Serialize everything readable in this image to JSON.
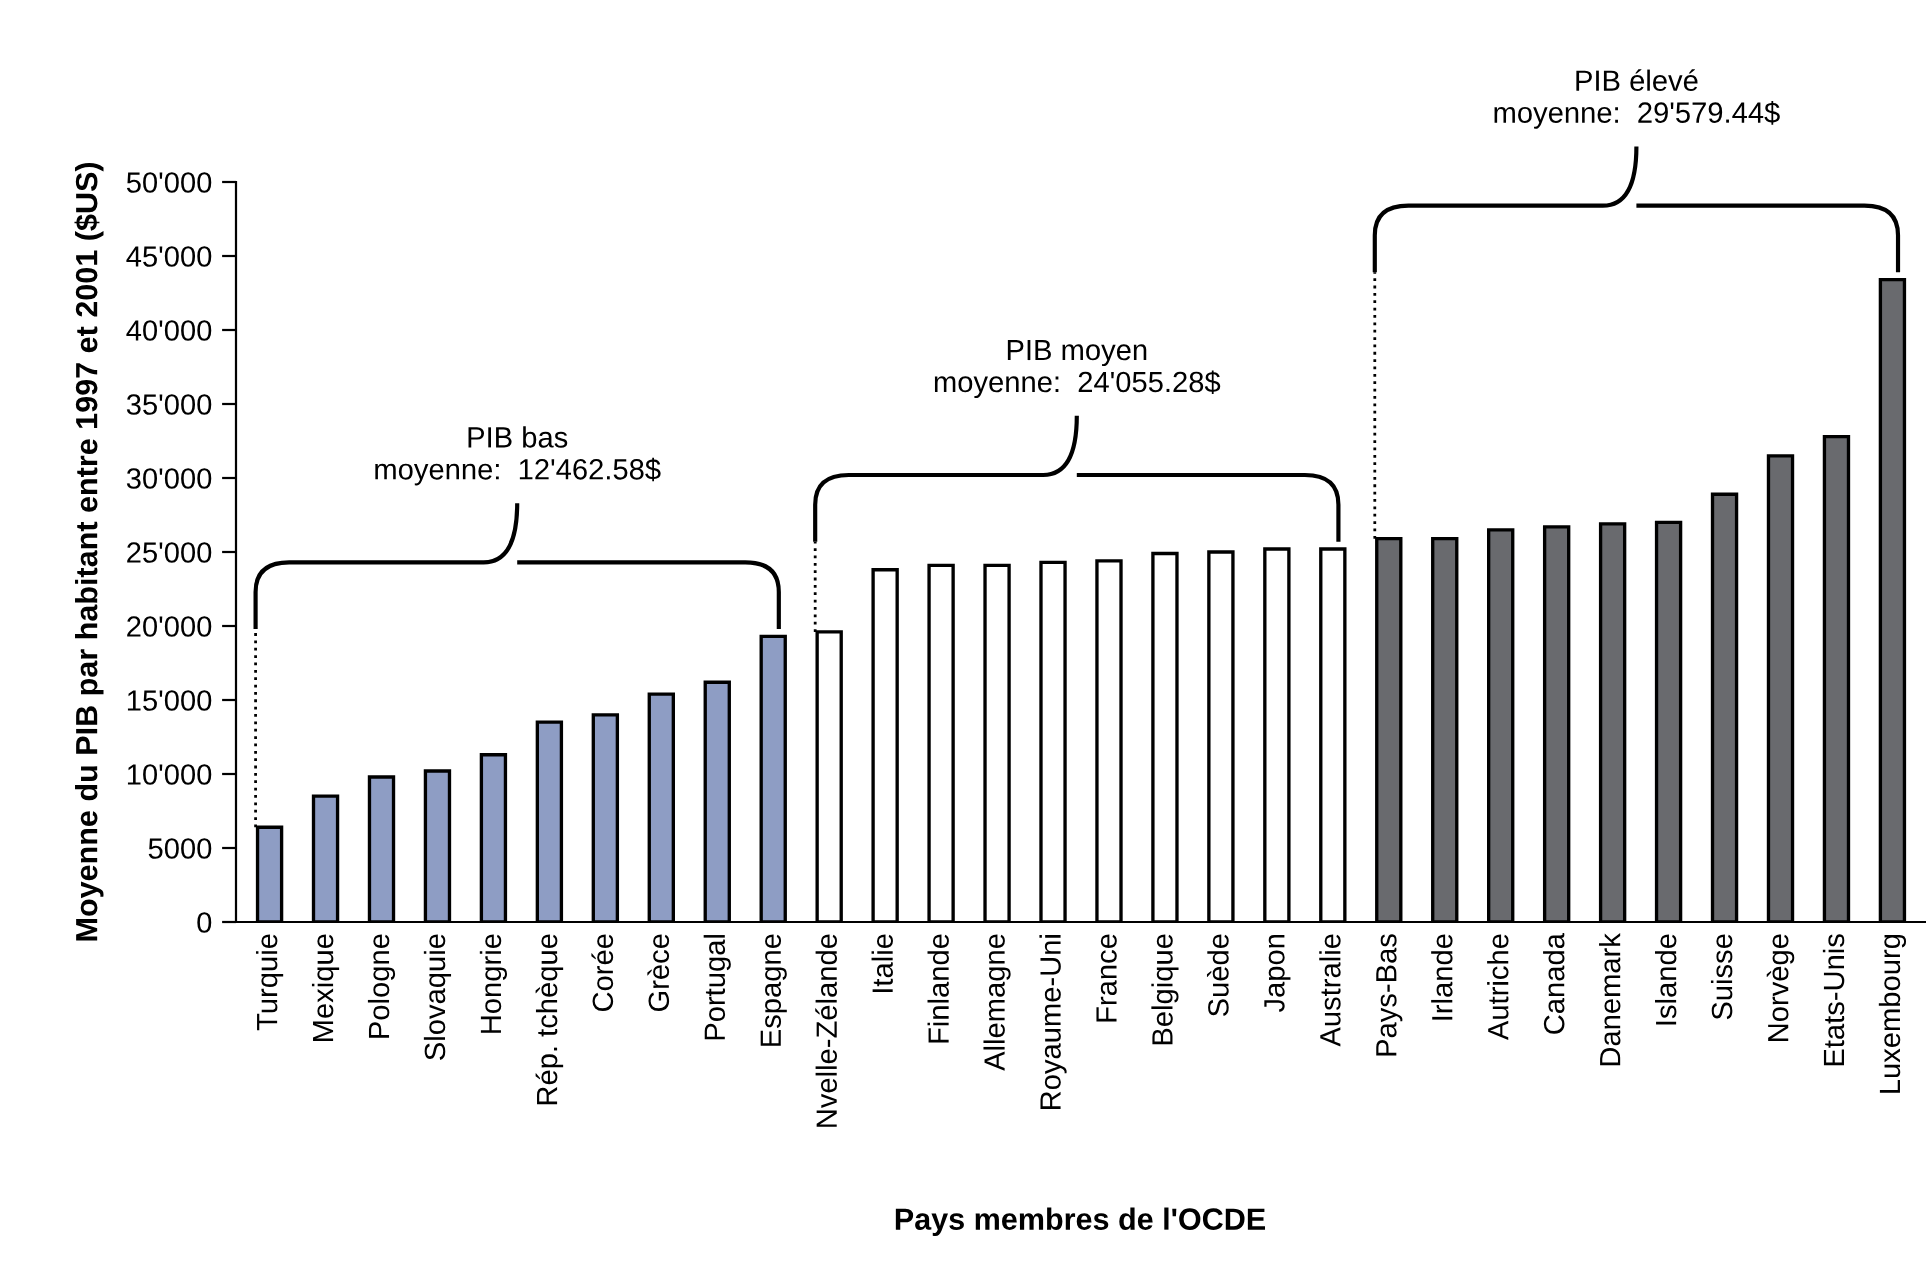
{
  "chart_data": {
    "type": "bar",
    "xlabel": "Pays membres de l'OCDE",
    "ylabel": "Moyenne du PIB par habitant entre 1997 et 2001 ($US)",
    "categories": [
      "Turquie",
      "Mexique",
      "Pologne",
      "Slovaquie",
      "Hongrie",
      "Rép. tchèque",
      "Corée",
      "Grèce",
      "Portugal",
      "Espagne",
      "Nvelle-Zélande",
      "Italie",
      "Finlande",
      "Allemagne",
      "Royaume-Uni",
      "France",
      "Belgique",
      "Suède",
      "Japon",
      "Australie",
      "Pays-Bas",
      "Irlande",
      "Autriche",
      "Canada",
      "Danemark",
      "Islande",
      "Suisse",
      "Norvège",
      "Etats-Unis",
      "Luxembourg"
    ],
    "values": [
      6400,
      8500,
      9800,
      10200,
      11300,
      13500,
      14000,
      15400,
      16200,
      19300,
      19600,
      23800,
      24100,
      24100,
      24300,
      24400,
      24900,
      25000,
      25200,
      25200,
      25900,
      25900,
      26500,
      26700,
      26900,
      27000,
      28900,
      31500,
      32800,
      43400
    ],
    "colors": [
      "#8e9dc4",
      "#8e9dc4",
      "#8e9dc4",
      "#8e9dc4",
      "#8e9dc4",
      "#8e9dc4",
      "#8e9dc4",
      "#8e9dc4",
      "#8e9dc4",
      "#8e9dc4",
      "#ffffff",
      "#ffffff",
      "#ffffff",
      "#ffffff",
      "#ffffff",
      "#ffffff",
      "#ffffff",
      "#ffffff",
      "#ffffff",
      "#ffffff",
      "#696a6e",
      "#696a6e",
      "#696a6e",
      "#696a6e",
      "#696a6e",
      "#696a6e",
      "#696a6e",
      "#696a6e",
      "#696a6e",
      "#696a6e"
    ],
    "ylim": [
      0,
      50000
    ],
    "yticks": [
      0,
      5000,
      {
        "value": 10000,
        "label": "10'000"
      },
      {
        "value": 15000,
        "label": "15'000"
      },
      {
        "value": 20000,
        "label": "20'000"
      },
      {
        "value": 25000,
        "label": "25'000"
      },
      {
        "value": 30000,
        "label": "30'000"
      },
      {
        "value": 35000,
        "label": "35'000"
      },
      {
        "value": 40000,
        "label": "40'000"
      },
      {
        "value": 45000,
        "label": "45'000"
      },
      {
        "value": 50000,
        "label": "50'000"
      }
    ],
    "grid": false,
    "legend": false,
    "annotations": [
      "PIB bas\nmoyenne:  12'462.58$",
      "PIB moyen\nmoyenne:  24'055.28$",
      "PIB élevé\nmoyenne:  29'579.44$"
    ]
  }
}
